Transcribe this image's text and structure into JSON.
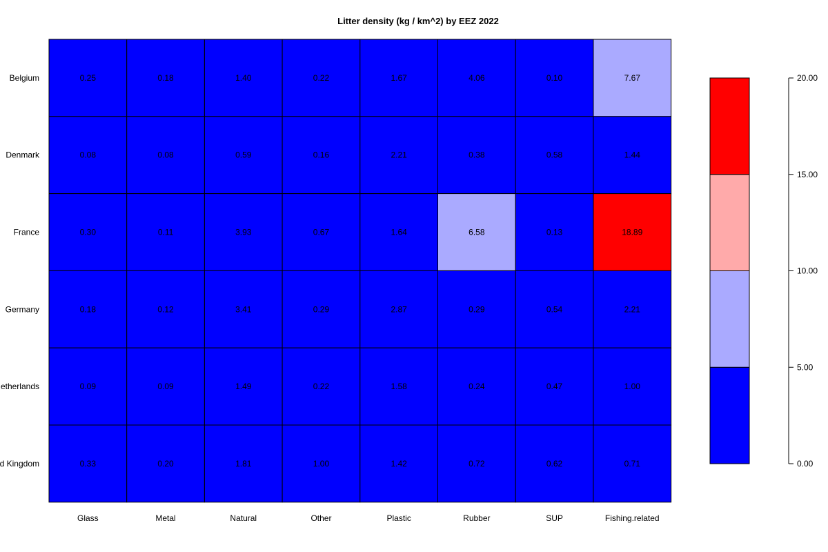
{
  "chart_data": {
    "type": "heatmap",
    "title": "Litter density (kg / km^2) by EEZ 2022",
    "columns": [
      "Glass",
      "Metal",
      "Natural",
      "Other",
      "Plastic",
      "Rubber",
      "SUP",
      "Fishing.related"
    ],
    "rows": [
      "Belgium",
      "Denmark",
      "France",
      "Germany",
      "Netherlands",
      "United Kingdom"
    ],
    "values": [
      [
        0.25,
        0.18,
        1.4,
        0.22,
        1.67,
        4.06,
        0.1,
        7.67
      ],
      [
        0.08,
        0.08,
        0.59,
        0.16,
        2.21,
        0.38,
        0.58,
        1.44
      ],
      [
        0.3,
        0.11,
        3.93,
        0.67,
        1.64,
        6.58,
        0.13,
        18.89
      ],
      [
        0.18,
        0.12,
        3.41,
        0.29,
        2.87,
        0.29,
        0.54,
        2.21
      ],
      [
        0.09,
        0.09,
        1.49,
        0.22,
        1.58,
        0.24,
        0.47,
        1.0
      ],
      [
        0.33,
        0.2,
        1.81,
        1.0,
        1.42,
        0.72,
        0.62,
        0.71
      ]
    ],
    "value_labels": [
      [
        "0.25",
        "0.18",
        "1.40",
        "0.22",
        "1.67",
        "4.06",
        "0.10",
        "7.67"
      ],
      [
        "0.08",
        "0.08",
        "0.59",
        "0.16",
        "2.21",
        "0.38",
        "0.58",
        "1.44"
      ],
      [
        "0.30",
        "0.11",
        "3.93",
        "0.67",
        "1.64",
        "6.58",
        "0.13",
        "18.89"
      ],
      [
        "0.18",
        "0.12",
        "3.41",
        "0.29",
        "2.87",
        "0.29",
        "0.54",
        "2.21"
      ],
      [
        "0.09",
        "0.09",
        "1.49",
        "0.22",
        "1.58",
        "0.24",
        "0.47",
        "1.00"
      ],
      [
        "0.33",
        "0.20",
        "1.81",
        "1.00",
        "1.42",
        "0.72",
        "0.62",
        "0.71"
      ]
    ],
    "color_scale": {
      "breaks": [
        0,
        5,
        10,
        15,
        20
      ],
      "colors": [
        "#0000ff",
        "#aaaaff",
        "#ffaaaa",
        "#ff0000"
      ],
      "tick_labels": [
        "0.00",
        "5.00",
        "10.00",
        "15.00",
        "20.00"
      ]
    },
    "legend_placement": "right",
    "grid": true
  }
}
